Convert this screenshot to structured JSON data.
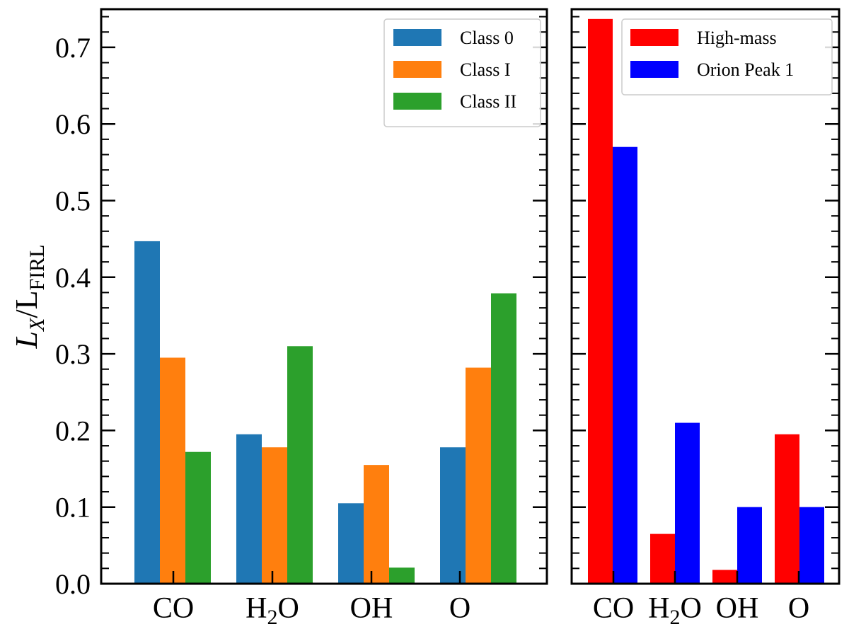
{
  "chart_data": [
    {
      "type": "bar",
      "panel": "left",
      "categories": [
        "CO",
        "H2O",
        "OH",
        "O"
      ],
      "category_labels": [
        {
          "main": "CO",
          "sub": "",
          "tail": ""
        },
        {
          "main": "H",
          "sub": "2",
          "tail": "O"
        },
        {
          "main": "OH",
          "sub": "",
          "tail": ""
        },
        {
          "main": "O",
          "sub": "",
          "tail": ""
        }
      ],
      "series": [
        {
          "name": "Class 0",
          "color": "#1f77b4",
          "values": [
            0.447,
            0.195,
            0.105,
            0.178
          ]
        },
        {
          "name": "Class I",
          "color": "#ff7f0e",
          "values": [
            0.295,
            0.178,
            0.155,
            0.282
          ]
        },
        {
          "name": "Class II",
          "color": "#2ca02c",
          "values": [
            0.172,
            0.31,
            0.021,
            0.379
          ]
        }
      ],
      "ylabel": {
        "main": "L",
        "sub1": "X",
        "mid": "/L",
        "sub2": "FIRL"
      },
      "ylim": [
        0.0,
        0.75
      ],
      "yticks": [
        "0.0",
        "0.1",
        "0.2",
        "0.3",
        "0.4",
        "0.5",
        "0.6",
        "0.7"
      ],
      "legend_position": "top-right",
      "grid": false
    },
    {
      "type": "bar",
      "panel": "right",
      "categories": [
        "CO",
        "H2O",
        "OH",
        "O"
      ],
      "category_labels": [
        {
          "main": "CO",
          "sub": "",
          "tail": ""
        },
        {
          "main": "H",
          "sub": "2",
          "tail": "O"
        },
        {
          "main": "OH",
          "sub": "",
          "tail": ""
        },
        {
          "main": "O",
          "sub": "",
          "tail": ""
        }
      ],
      "series": [
        {
          "name": "High-mass",
          "color": "#ff0000",
          "values": [
            0.737,
            0.065,
            0.018,
            0.195
          ]
        },
        {
          "name": "Orion Peak 1",
          "color": "#0000ff",
          "values": [
            0.57,
            0.21,
            0.1,
            0.1
          ]
        }
      ],
      "ylim": [
        0.0,
        0.75
      ],
      "legend_position": "top-right",
      "grid": false
    }
  ]
}
